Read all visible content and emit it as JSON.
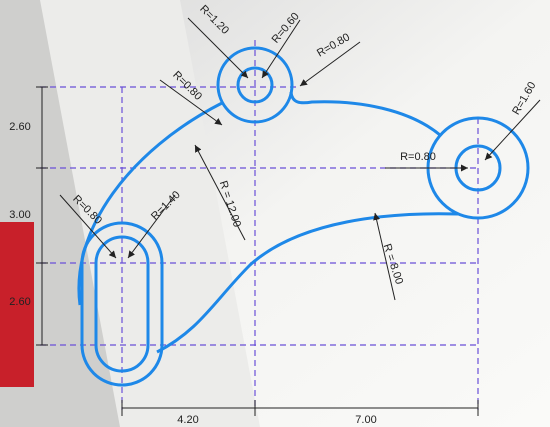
{
  "annotations": [
    {
      "text": "R=1.20"
    },
    {
      "text": "R=0.60"
    },
    {
      "text": "R=0.80"
    },
    {
      "text": "R=0.80"
    },
    {
      "text": "R=1.60"
    },
    {
      "text": "R=0.80"
    },
    {
      "text": "2.60"
    },
    {
      "text": "3.00"
    },
    {
      "text": "2.60"
    },
    {
      "text": "R=0.80"
    },
    {
      "text": "R=1.40"
    },
    {
      "text": "R = 12.00"
    },
    {
      "text": "R = 8.00"
    },
    {
      "text": "4.20"
    },
    {
      "text": "7.00"
    }
  ]
}
